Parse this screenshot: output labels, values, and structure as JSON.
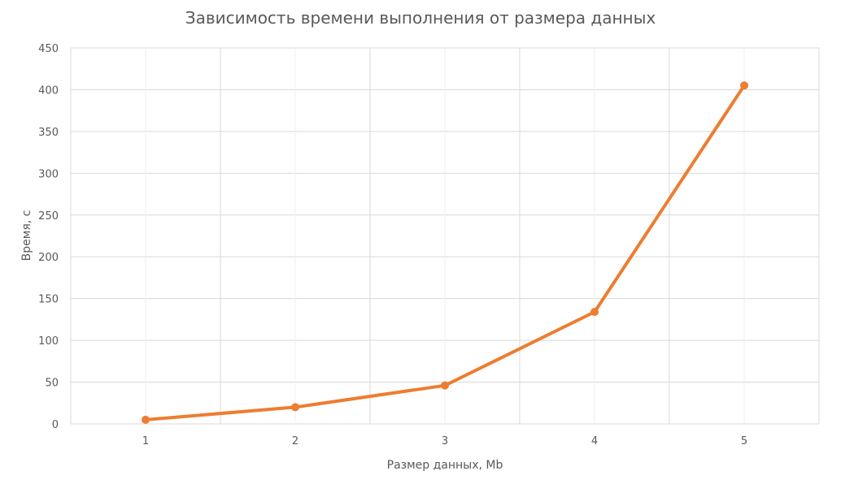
{
  "chart_data": {
    "type": "line",
    "title": "Зависимость времени выполнения от размера данных",
    "xlabel": "Размер данных,  Mb",
    "ylabel": "Время, с",
    "categories": [
      "1",
      "2",
      "3",
      "4",
      "5"
    ],
    "series": [
      {
        "values": [
          5,
          20,
          46,
          134,
          405
        ],
        "color": "#ed7d31"
      }
    ],
    "ylim": [
      0,
      450
    ],
    "yticks": [
      0,
      50,
      100,
      150,
      200,
      250,
      300,
      350,
      400,
      450
    ],
    "grid": true,
    "legend": "none"
  },
  "colors": {
    "grid": "#d9d9d9",
    "text": "#595959",
    "series": "#ed7d31"
  }
}
